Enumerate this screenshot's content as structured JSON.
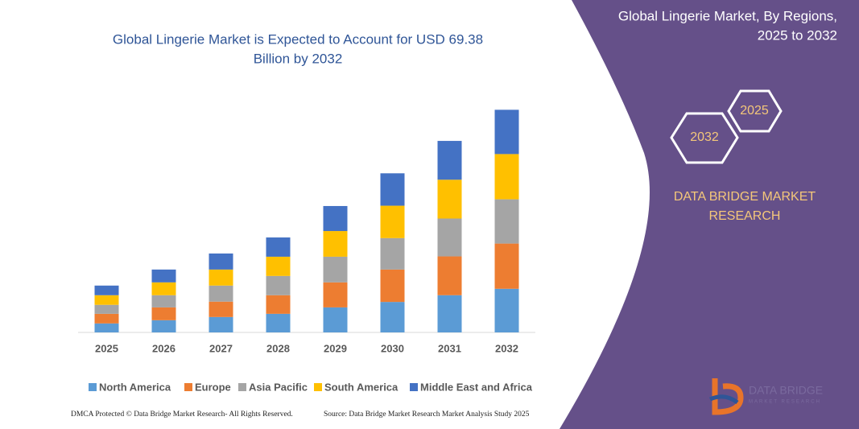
{
  "chart_data": {
    "type": "stacked_bar",
    "title": [
      "Global Lingerie Market is Expected to Account for USD 69.38",
      "Billion by 2032"
    ],
    "categories": [
      "2025",
      "2026",
      "2027",
      "2028",
      "2029",
      "2030",
      "2031",
      "2032"
    ],
    "series": [
      {
        "name": "North America",
        "color": "#5b9bd5",
        "values": [
          2.8,
          3.8,
          4.8,
          5.8,
          7.8,
          9.5,
          11.6,
          13.6
        ]
      },
      {
        "name": "Europe",
        "color": "#ed7d31",
        "values": [
          3.0,
          4.0,
          4.8,
          5.8,
          7.8,
          10.1,
          12.1,
          14.1
        ]
      },
      {
        "name": "Asia Pacific",
        "color": "#a5a5a5",
        "values": [
          2.8,
          3.8,
          5.0,
          6.0,
          8.0,
          9.8,
          11.8,
          13.8
        ]
      },
      {
        "name": "South America",
        "color": "#ffc000",
        "values": [
          3.0,
          4.0,
          5.0,
          6.0,
          8.0,
          10.1,
          12.1,
          14.1
        ]
      },
      {
        "name": "Middle East and Africa",
        "color": "#4472c4",
        "values": [
          3.0,
          4.0,
          5.0,
          6.0,
          7.8,
          10.1,
          12.1,
          13.8
        ]
      }
    ],
    "ylim": [
      0,
      70
    ]
  },
  "side_panel": {
    "title": [
      "Global Lingerie Market, By Regions,",
      "2025 to 2032"
    ],
    "hexagons": [
      "2025",
      "2032"
    ],
    "brand": [
      "DATA BRIDGE MARKET",
      "RESEARCH"
    ],
    "logo": [
      "DATA BRIDGE",
      "MARKET RESEARCH"
    ]
  },
  "footer": {
    "copyright": "DMCA Protected © Data Bridge Market Research- All Rights Reserved.",
    "source": "Source: Data Bridge Market Research Market Analysis Study 2025"
  }
}
